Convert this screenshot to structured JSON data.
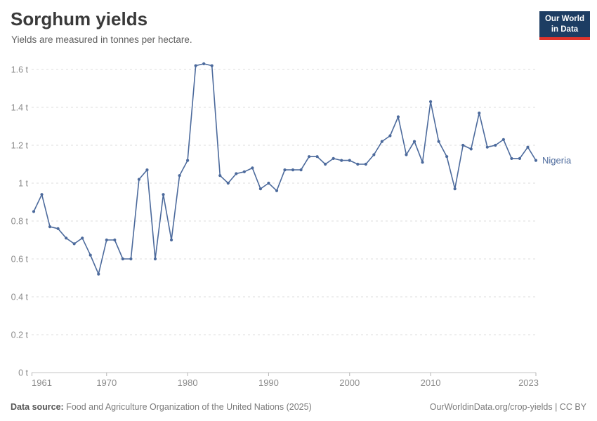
{
  "header": {
    "title": "Sorghum yields",
    "subtitle": "Yields are measured in tonnes per hectare.",
    "logo": {
      "line1": "Our World",
      "line2": "in Data",
      "bg_color": "#1d3d63",
      "accent_color": "#e0342c"
    }
  },
  "chart_data": {
    "type": "line",
    "title": "Sorghum yields",
    "ylabel": "tonnes per hectare",
    "unit": "t",
    "xlim": [
      1961,
      2023
    ],
    "ylim": [
      0,
      1.65
    ],
    "grid": "horizontal-dashed",
    "legend_position": "end-of-line",
    "x_ticks": [
      1961,
      1970,
      1980,
      1990,
      2000,
      2010,
      2023
    ],
    "y_ticks": [
      0,
      0.2,
      0.4,
      0.6,
      0.8,
      1,
      1.2,
      1.4,
      1.6
    ],
    "series": [
      {
        "name": "Nigeria",
        "color": "#4c6a9c",
        "x": [
          1961,
          1962,
          1963,
          1964,
          1965,
          1966,
          1967,
          1968,
          1969,
          1970,
          1971,
          1972,
          1973,
          1974,
          1975,
          1976,
          1977,
          1978,
          1979,
          1980,
          1981,
          1982,
          1983,
          1984,
          1985,
          1986,
          1987,
          1988,
          1989,
          1990,
          1991,
          1992,
          1993,
          1994,
          1995,
          1996,
          1997,
          1998,
          1999,
          2000,
          2001,
          2002,
          2003,
          2004,
          2005,
          2006,
          2007,
          2008,
          2009,
          2010,
          2011,
          2012,
          2013,
          2014,
          2015,
          2016,
          2017,
          2018,
          2019,
          2020,
          2021,
          2022,
          2023
        ],
        "values": [
          0.85,
          0.94,
          0.77,
          0.76,
          0.71,
          0.68,
          0.71,
          0.62,
          0.52,
          0.7,
          0.7,
          0.6,
          0.6,
          1.02,
          1.07,
          0.6,
          0.94,
          0.7,
          1.04,
          1.12,
          1.62,
          1.63,
          1.62,
          1.04,
          1.0,
          1.05,
          1.06,
          1.08,
          0.97,
          1.0,
          0.96,
          1.07,
          1.07,
          1.07,
          1.14,
          1.14,
          1.1,
          1.13,
          1.12,
          1.12,
          1.1,
          1.1,
          1.15,
          1.22,
          1.25,
          1.35,
          1.15,
          1.22,
          1.11,
          1.43,
          1.22,
          1.14,
          0.97,
          1.2,
          1.18,
          1.37,
          1.19,
          1.2,
          1.23,
          1.13,
          1.13,
          1.19,
          1.12
        ]
      }
    ],
    "colors": {
      "gridline": "#dcdcdc",
      "axis_line": "#c6c6c6",
      "tick_mark": "#b5b5b5",
      "tick_label": "#8b8b8b"
    }
  },
  "footer": {
    "source_label": "Data source:",
    "source_text": "Food and Agriculture Organization of the United Nations (2025)",
    "right_text": "OurWorldinData.org/crop-yields | CC BY"
  }
}
